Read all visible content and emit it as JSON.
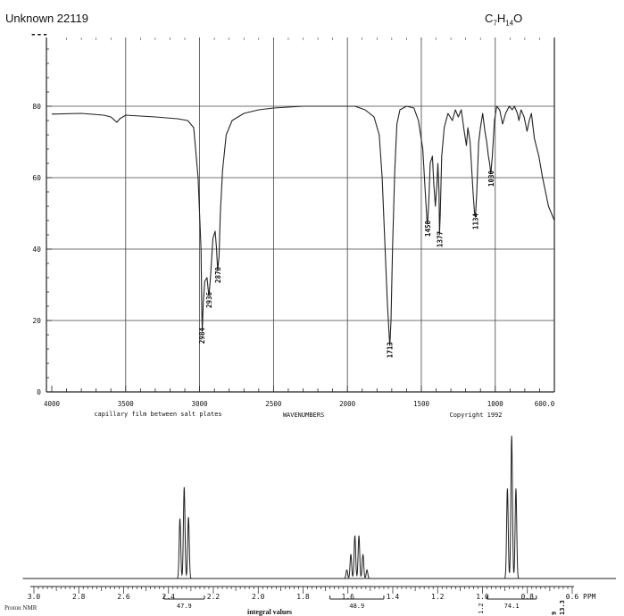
{
  "header": {
    "title": "Unknown 22119",
    "formula_parts": [
      "C",
      "7",
      "H",
      "14",
      "O"
    ],
    "dashes": "---"
  },
  "chart_data": [
    {
      "type": "line",
      "xlabel": "WAVENUMBERS",
      "sample_note": "capillary film between salt plates",
      "copyright": "Copyright 1992",
      "xlim": [
        4000,
        600
      ],
      "xlim_end_label": "600.0",
      "ylim": [
        0,
        100
      ],
      "x_ticks": [
        4000,
        3500,
        3000,
        2500,
        2000,
        1500,
        1000
      ],
      "y_ticks": [
        0,
        20,
        40,
        60,
        80
      ],
      "grid": true,
      "series": [
        {
          "points": [
            [
              4000,
              77.8
            ],
            [
              3800,
              78
            ],
            [
              3650,
              77.5
            ],
            [
              3600,
              77
            ],
            [
              3560,
              75.5
            ],
            [
              3540,
              76.5
            ],
            [
              3500,
              77.5
            ],
            [
              3300,
              77
            ],
            [
              3150,
              76.5
            ],
            [
              3080,
              76
            ],
            [
              3040,
              74
            ],
            [
              3010,
              60
            ],
            [
              2990,
              40
            ],
            [
              2985,
              22
            ],
            [
              2982,
              17
            ],
            [
              2975,
              25
            ],
            [
              2965,
              31
            ],
            [
              2950,
              32
            ],
            [
              2940,
              28
            ],
            [
              2936,
              27
            ],
            [
              2925,
              33
            ],
            [
              2910,
              43
            ],
            [
              2895,
              45
            ],
            [
              2885,
              40
            ],
            [
              2878,
              34
            ],
            [
              2868,
              38
            ],
            [
              2860,
              50
            ],
            [
              2845,
              62
            ],
            [
              2820,
              72
            ],
            [
              2780,
              76
            ],
            [
              2700,
              78
            ],
            [
              2600,
              79
            ],
            [
              2500,
              79.5
            ],
            [
              2300,
              80
            ],
            [
              2100,
              80
            ],
            [
              1950,
              80
            ],
            [
              1880,
              79
            ],
            [
              1820,
              77
            ],
            [
              1785,
              72
            ],
            [
              1765,
              60
            ],
            [
              1745,
              40
            ],
            [
              1730,
              25
            ],
            [
              1718,
              16
            ],
            [
              1713,
              13
            ],
            [
              1705,
              20
            ],
            [
              1695,
              40
            ],
            [
              1680,
              62
            ],
            [
              1665,
              75
            ],
            [
              1645,
              79
            ],
            [
              1600,
              80
            ],
            [
              1550,
              79.5
            ],
            [
              1520,
              76
            ],
            [
              1490,
              68
            ],
            [
              1472,
              55
            ],
            [
              1462,
              48
            ],
            [
              1458,
              47
            ],
            [
              1450,
              53
            ],
            [
              1440,
              64
            ],
            [
              1425,
              66
            ],
            [
              1415,
              58
            ],
            [
              1405,
              52
            ],
            [
              1395,
              58
            ],
            [
              1388,
              64
            ],
            [
              1380,
              56
            ],
            [
              1377,
              44
            ],
            [
              1372,
              50
            ],
            [
              1362,
              66
            ],
            [
              1345,
              74
            ],
            [
              1320,
              78
            ],
            [
              1290,
              76
            ],
            [
              1270,
              79
            ],
            [
              1250,
              77
            ],
            [
              1230,
              79
            ],
            [
              1210,
              73
            ],
            [
              1195,
              69
            ],
            [
              1185,
              74
            ],
            [
              1170,
              70
            ],
            [
              1150,
              56
            ],
            [
              1140,
              50
            ],
            [
              1134,
              49
            ],
            [
              1125,
              56
            ],
            [
              1112,
              70
            ],
            [
              1100,
              74
            ],
            [
              1085,
              78
            ],
            [
              1070,
              73
            ],
            [
              1058,
              70
            ],
            [
              1046,
              66
            ],
            [
              1038,
              64
            ],
            [
              1030,
              61
            ],
            [
              1020,
              66
            ],
            [
              1005,
              76
            ],
            [
              990,
              80
            ],
            [
              970,
              79
            ],
            [
              950,
              75
            ],
            [
              930,
              78
            ],
            [
              905,
              80
            ],
            [
              885,
              79
            ],
            [
              870,
              80
            ],
            [
              850,
              78
            ],
            [
              840,
              76
            ],
            [
              825,
              79
            ],
            [
              805,
              77
            ],
            [
              785,
              73
            ],
            [
              770,
              76
            ],
            [
              755,
              78
            ],
            [
              735,
              71
            ],
            [
              705,
              66
            ],
            [
              680,
              60
            ],
            [
              660,
              56
            ],
            [
              640,
              52
            ],
            [
              620,
              50
            ],
            [
              600,
              48
            ]
          ]
        }
      ],
      "annotations": [
        {
          "label": "2984",
          "x": 2984,
          "y": 17
        },
        {
          "label": "2936",
          "x": 2936,
          "y": 27
        },
        {
          "label": "2878",
          "x": 2878,
          "y": 34
        },
        {
          "label": "1713",
          "x": 1713,
          "y": 13
        },
        {
          "label": "1458",
          "x": 1458,
          "y": 47
        },
        {
          "label": "1377",
          "x": 1377,
          "y": 44
        },
        {
          "label": "1134",
          "x": 1134,
          "y": 49
        },
        {
          "label": "1030",
          "x": 1030,
          "y": 61
        }
      ]
    },
    {
      "type": "line",
      "xlabel": "PPM",
      "xlim": [
        3.0,
        0.6
      ],
      "x_ticks": [
        3.0,
        2.8,
        2.6,
        2.4,
        2.2,
        2.0,
        1.8,
        1.6,
        1.4,
        1.2,
        1.0,
        0.8,
        0.6
      ],
      "x_tick_labels": [
        "3.0",
        "2.8",
        "2.6",
        "2.4",
        "2.2",
        "2.0",
        "1.8",
        "1.6",
        "1.4",
        "1.2",
        "1.0",
        "0.8",
        "0.6"
      ],
      "ylim": [
        0,
        100
      ],
      "label": "Proton NMR",
      "integral_caption": "integral values",
      "multiplets": [
        {
          "center": 2.33,
          "J": 0.019,
          "intensities": [
            43,
            64,
            42
          ]
        },
        {
          "center": 1.56,
          "J": 0.018,
          "intensities": [
            6,
            17,
            30,
            30,
            17,
            6
          ]
        },
        {
          "center": 0.87,
          "J": 0.019,
          "intensities": [
            63,
            100,
            63
          ]
        }
      ],
      "integrals": [
        {
          "label": "47.9",
          "from": 2.42,
          "to": 2.24
        },
        {
          "label": "48.9",
          "from": 1.68,
          "to": 1.44
        },
        {
          "label": "74.1",
          "from": 0.98,
          "to": 0.76
        }
      ],
      "edge_labels": {
        "left": "1.2",
        "right_a": "13.3",
        "right_b": "9"
      }
    }
  ]
}
